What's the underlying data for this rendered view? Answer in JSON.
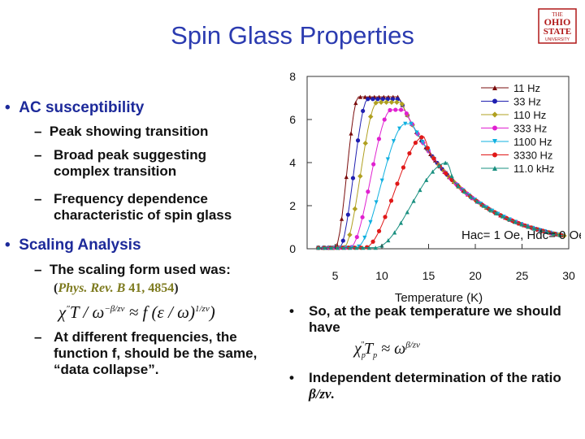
{
  "slide": {
    "title": "Spin Glass Properties",
    "logo_text": [
      "THE",
      "OHIO",
      "STATE",
      "UNIVERSITY"
    ],
    "left_bullets": {
      "ac_heading": "AC susceptibility",
      "ac_items": [
        "Peak showing transition",
        "Broad peak suggesting complex transition",
        "Frequency dependence characteristic of spin glass"
      ],
      "scaling_heading": "Scaling Analysis",
      "scaling_item1": "The scaling form used was:",
      "citation_journal": "Phys. Rev. B",
      "citation_volume": "41, 4854",
      "scaling_item2": "At different frequencies, the function f, should be the same, “data collapse”."
    },
    "right_bullets": {
      "peak_text": "So, at the peak temperature we should have",
      "independent_text": "Independent determination of the ratio",
      "ratio_symbol": "β/zν."
    }
  },
  "chart_data": {
    "type": "line",
    "xlabel": "Temperature (K)",
    "ylabel": "",
    "xlim": [
      2,
      30
    ],
    "ylim": [
      0,
      8
    ],
    "xticks": [
      5,
      10,
      15,
      20,
      25,
      30
    ],
    "yticks": [
      0,
      2,
      4,
      6,
      8
    ],
    "legend_position": "top-right",
    "annotation": "Hac= 1 Oe, Hdc= 0 Oe",
    "series": [
      {
        "name": "11 Hz",
        "color": "#7a0c0c",
        "marker": "triangle-up",
        "peak_x": 7.5,
        "peak_y": 7.05
      },
      {
        "name": "33 Hz",
        "color": "#1f1fb0",
        "marker": "circle",
        "peak_x": 8.5,
        "peak_y": 6.95
      },
      {
        "name": "110 Hz",
        "color": "#b0a020",
        "marker": "diamond",
        "peak_x": 9.5,
        "peak_y": 6.8
      },
      {
        "name": "333 Hz",
        "color": "#e020d0",
        "marker": "circle",
        "peak_x": 11,
        "peak_y": 6.45
      },
      {
        "name": "1100 Hz",
        "color": "#10b0e0",
        "marker": "triangle-down",
        "peak_x": 12.5,
        "peak_y": 5.8
      },
      {
        "name": "3330 Hz",
        "color": "#e01818",
        "marker": "circle",
        "peak_x": 14.5,
        "peak_y": 5.2
      },
      {
        "name": "11.0 kHz",
        "color": "#1a9080",
        "marker": "triangle-up",
        "peak_x": 17,
        "peak_y": 4.0
      }
    ]
  }
}
